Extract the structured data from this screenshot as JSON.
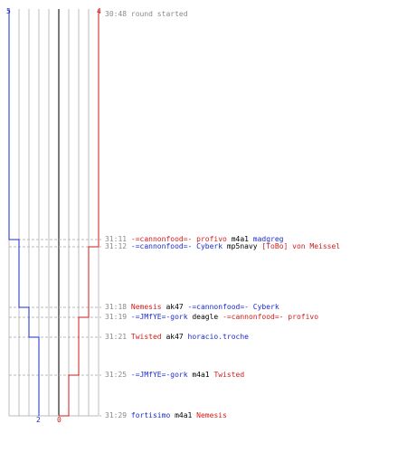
{
  "colors": {
    "team_blue": "#1a2bcc",
    "team_red": "#d11a1a",
    "weapon_text": "#000000",
    "time_text": "#8a8a8a",
    "grid_line": "#bdbdbd",
    "grid_center": "#7a7a7a",
    "dash_line": "#b8b8b8"
  },
  "chart_data": {
    "type": "line",
    "title": "",
    "series": [
      {
        "name": "",
        "color": "blue",
        "start": 5,
        "end": 2
      },
      {
        "name": "",
        "color": "red",
        "start": 4,
        "end": 0
      }
    ],
    "x_tick_labels": [
      "2",
      "0"
    ],
    "top_labels": [
      "5",
      "4"
    ]
  },
  "events": [
    {
      "time": "30:48",
      "segments": [
        {
          "text": "round started",
          "color": "muted"
        }
      ]
    },
    {
      "time": "31:11",
      "segments": [
        {
          "text": "-=cannonfood=- profivo",
          "color": "red"
        },
        {
          "text": " m4a1 ",
          "color": "weapon"
        },
        {
          "text": "madgreg",
          "color": "blue"
        }
      ]
    },
    {
      "time": "31:12",
      "segments": [
        {
          "text": "-=cannonfood=- Cyberk",
          "color": "blue"
        },
        {
          "text": " mp5navy ",
          "color": "weapon"
        },
        {
          "text": "[ToBo] von Meissel",
          "color": "red"
        }
      ]
    },
    {
      "time": "31:18",
      "segments": [
        {
          "text": "Nemesis",
          "color": "red"
        },
        {
          "text": " ak47 ",
          "color": "weapon"
        },
        {
          "text": "-=cannonfood=- Cyberk",
          "color": "blue"
        }
      ]
    },
    {
      "time": "31:19",
      "segments": [
        {
          "text": "-=JMfYE=-gork",
          "color": "blue"
        },
        {
          "text": " deagle ",
          "color": "weapon"
        },
        {
          "text": "-=cannonfood=- profivo",
          "color": "red"
        }
      ]
    },
    {
      "time": "31:21",
      "segments": [
        {
          "text": "Twisted",
          "color": "red"
        },
        {
          "text": " ak47 ",
          "color": "weapon"
        },
        {
          "text": "horacio.troche",
          "color": "blue"
        }
      ]
    },
    {
      "time": "31:25",
      "segments": [
        {
          "text": "-=JMfYE=-gork",
          "color": "blue"
        },
        {
          "text": " m4a1 ",
          "color": "weapon"
        },
        {
          "text": "Twisted",
          "color": "red"
        }
      ]
    },
    {
      "time": "31:29",
      "segments": [
        {
          "text": "fortisimo",
          "color": "blue"
        },
        {
          "text": " m4a1 ",
          "color": "weapon"
        },
        {
          "text": "Nemesis",
          "color": "red"
        }
      ]
    }
  ]
}
